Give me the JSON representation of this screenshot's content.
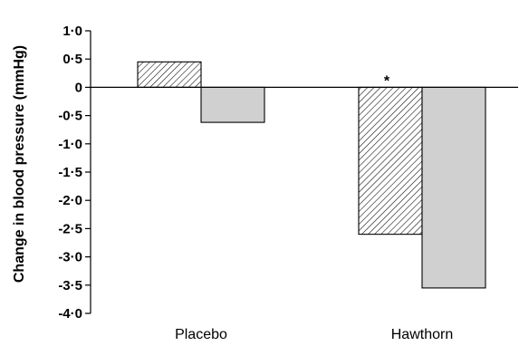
{
  "chart_data": {
    "type": "bar",
    "title": "",
    "ylabel": "Change in blood pressure (mmHg)",
    "xlabel": "",
    "categories": [
      "Placebo",
      "Hawthorn"
    ],
    "series": [
      {
        "pattern": "hatched",
        "fill": "#ffffff",
        "values": [
          0.45,
          -2.6
        ]
      },
      {
        "pattern": "solid",
        "fill": "#d0d0d0",
        "values": [
          -0.62,
          -3.55
        ]
      }
    ],
    "ylim": [
      -4.0,
      1.0
    ],
    "yticks": [
      1.0,
      0.5,
      0,
      -0.5,
      -1.0,
      -1.5,
      -2.0,
      -2.5,
      -3.0,
      -3.5,
      -4.0
    ],
    "ytick_labels": [
      "1·0",
      "0·5",
      "0",
      "-0·5",
      "-1·0",
      "-1·5",
      "-2·0",
      "-2·5",
      "-3·0",
      "-3·5",
      "-4·0"
    ],
    "annotations": [
      {
        "text": "*",
        "category": "Hawthorn",
        "series": 0
      }
    ],
    "grid": false,
    "legend": "none"
  }
}
